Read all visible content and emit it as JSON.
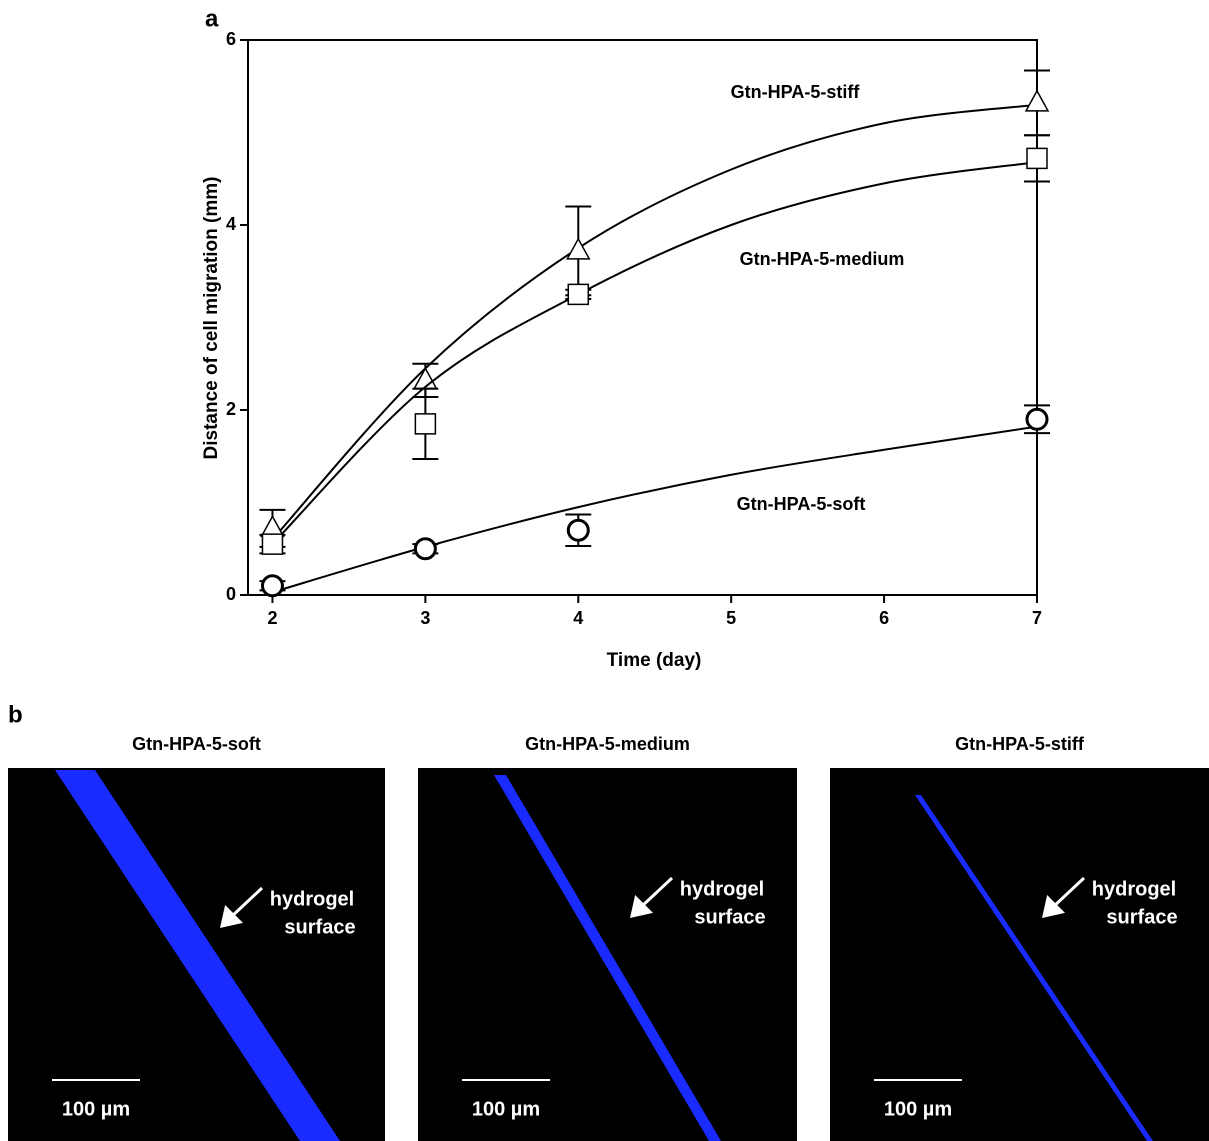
{
  "chart_data": {
    "type": "scatter",
    "panel_label": "a",
    "x_label": "Time (day)",
    "y_label": "Distance of cell migration (mm)",
    "x": [
      2,
      3,
      4,
      7
    ],
    "fit_x": [
      2,
      3,
      4,
      5,
      6,
      7
    ],
    "color": "#000000",
    "series": [
      {
        "name": "Gtn-HPA-5-stiff",
        "marker": "triangle",
        "values": [
          0.72,
          2.32,
          3.72,
          5.32
        ],
        "errors": [
          0.2,
          0.18,
          0.48,
          0.35
        ],
        "fit": [
          0.6,
          2.45,
          3.75,
          4.6,
          5.1,
          5.3
        ]
      },
      {
        "name": "Gtn-HPA-5-medium",
        "marker": "square",
        "values": [
          0.55,
          1.85,
          3.25,
          4.72
        ],
        "errors": [
          0.1,
          0.38,
          0.05,
          0.25
        ],
        "fit": [
          0.55,
          2.25,
          3.25,
          4.0,
          4.45,
          4.68
        ]
      },
      {
        "name": "Gtn-HPA-5-soft",
        "marker": "circle",
        "values": [
          0.1,
          0.5,
          0.7,
          1.9
        ],
        "errors": [
          0.05,
          0.05,
          0.17,
          0.15
        ],
        "fit": [
          0.03,
          0.52,
          0.95,
          1.3,
          1.57,
          1.82
        ]
      }
    ],
    "xlim": [
      1.84,
      7
    ],
    "ylim": [
      0,
      6
    ],
    "xticks": [
      2,
      3,
      4,
      5,
      6,
      7
    ],
    "yticks": [
      0,
      2,
      4,
      6
    ]
  },
  "images": {
    "panel_label": "b",
    "items": [
      {
        "title": "Gtn-HPA-5-soft",
        "annotation": [
          "hydrogel",
          "surface"
        ],
        "scale_bar": "100 µm"
      },
      {
        "title": "Gtn-HPA-5-medium",
        "annotation": [
          "hydrogel",
          "surface"
        ],
        "scale_bar": "100 µm"
      },
      {
        "title": "Gtn-HPA-5-stiff",
        "annotation": [
          "hydrogel",
          "surface"
        ],
        "scale_bar": "100 µm"
      }
    ]
  }
}
